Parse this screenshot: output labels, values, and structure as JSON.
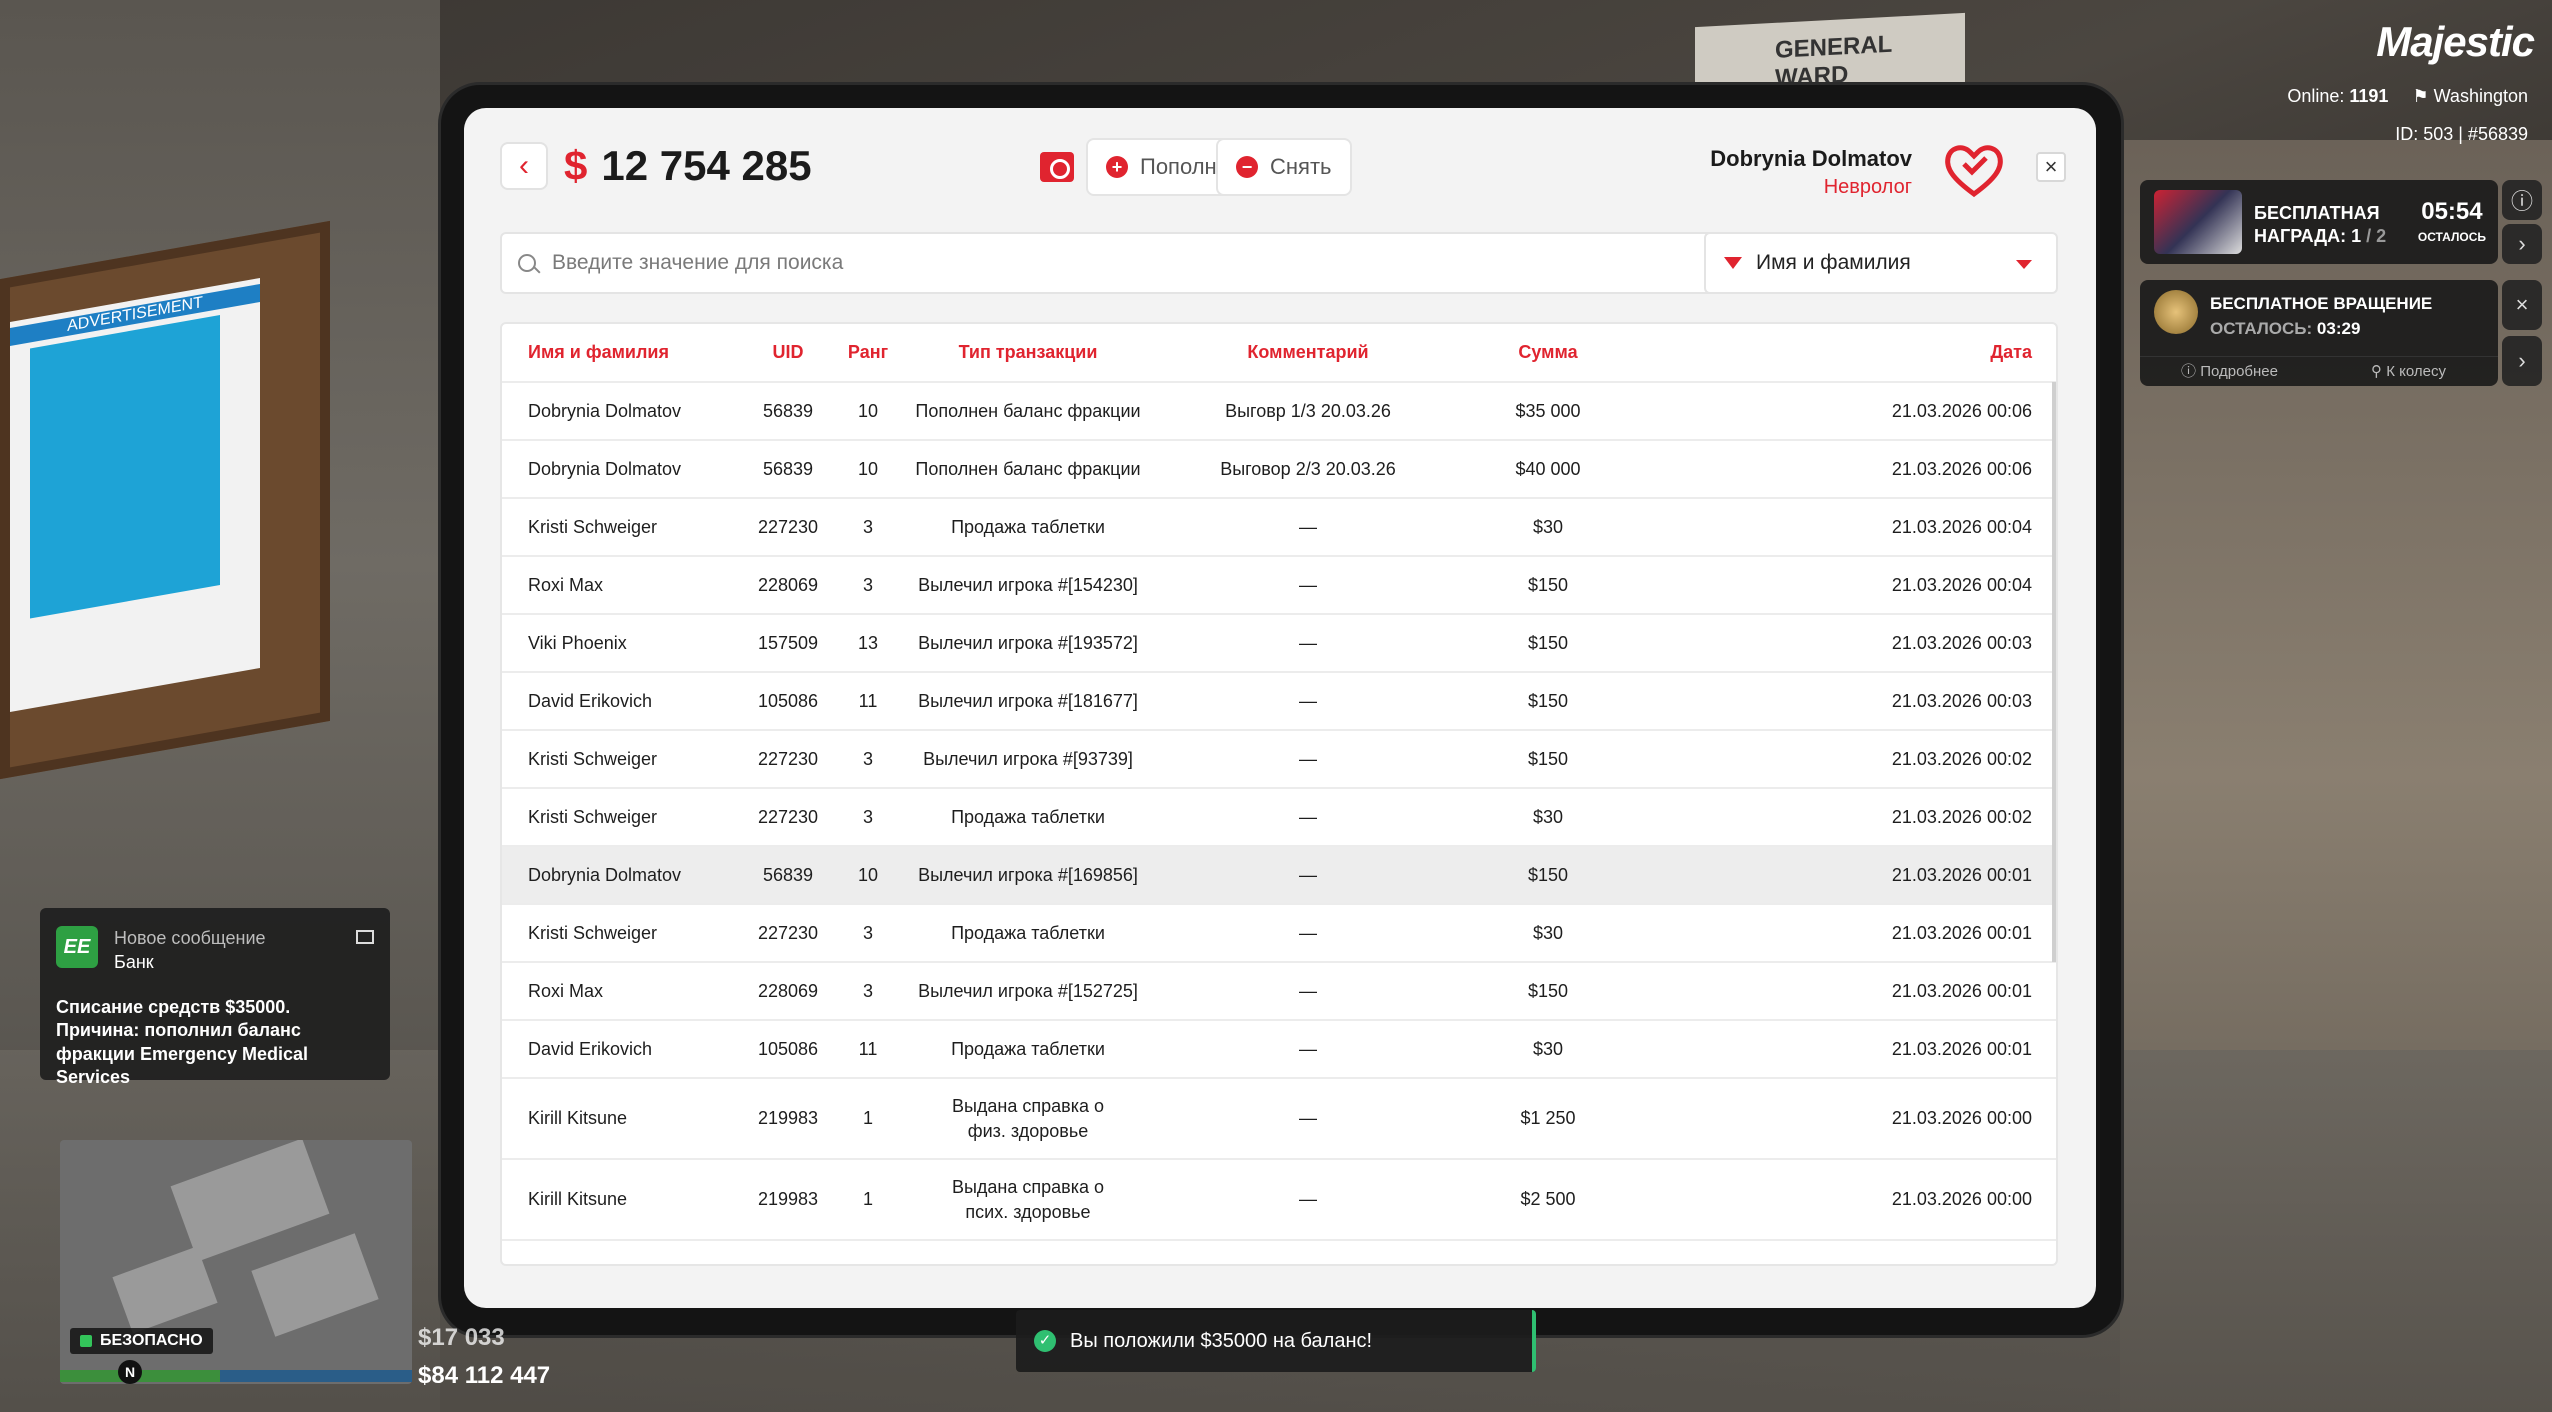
{
  "scene": {
    "poster_header": "ADVERTISEMENT",
    "sign_text": "GENERAL WARD"
  },
  "hud": {
    "logo": "Majestic",
    "online_label": "Online:",
    "online_count": "1191",
    "server": "Washington",
    "id_line": "ID: 503 | #56839",
    "reward": {
      "title_line1": "БЕСПЛАТНАЯ",
      "title_line2": "НАГРАДА: 1",
      "title_total": " / 2",
      "time": "05:54",
      "time_label": "ОСТАЛОСЬ"
    },
    "spin": {
      "title": "БЕСПЛАТНОЕ ВРАЩЕНИЕ",
      "left_label": "ОСТАЛОСЬ:",
      "left_time": "03:29",
      "more": "Подробнее",
      "to_wheel": "К колесу"
    },
    "notification": {
      "app": "EE",
      "title": "Новое сообщение",
      "sender": "Банк",
      "body": "Списание средств $35000. Причина: пополнил баланс фракции Emergency Medical Services"
    },
    "safe_zone": "БЕЗОПАСНО",
    "compass": "N",
    "cash": "$17 033",
    "bank": "$84 112 447",
    "toast": "Вы положили $35000 на баланс!"
  },
  "header": {
    "back_icon": "‹",
    "currency": "$",
    "balance": "12 754 285",
    "deposit_label": "Пополнить",
    "withdraw_label": "Снять",
    "user_name": "Dobrynia Dolmatov",
    "user_rank": "Невролог",
    "close_icon": "×"
  },
  "search": {
    "placeholder": "Введите значение для поиска",
    "filter_label": "Имя и фамилия"
  },
  "table": {
    "columns": [
      "Имя и фамилия",
      "UID",
      "Ранг",
      "Тип транзакции",
      "Комментарий",
      "Сумма",
      "Дата"
    ],
    "rows": [
      {
        "name": "Dobrynia Dolmatov",
        "uid": "56839",
        "rank": "10",
        "type": "Пополнен баланс фракции",
        "comment": "Выговр 1/3 20.03.26",
        "amount": "$35 000",
        "date": "21.03.2026 00:06"
      },
      {
        "name": "Dobrynia Dolmatov",
        "uid": "56839",
        "rank": "10",
        "type": "Пополнен баланс фракции",
        "comment": "Выговор 2/3 20.03.26",
        "amount": "$40 000",
        "date": "21.03.2026 00:06"
      },
      {
        "name": "Kristi Schweiger",
        "uid": "227230",
        "rank": "3",
        "type": "Продажа таблетки",
        "comment": "—",
        "amount": "$30",
        "date": "21.03.2026 00:04"
      },
      {
        "name": "Roxi Max",
        "uid": "228069",
        "rank": "3",
        "type": "Вылечил игрока #[154230]",
        "comment": "—",
        "amount": "$150",
        "date": "21.03.2026 00:04"
      },
      {
        "name": "Viki Phoenix",
        "uid": "157509",
        "rank": "13",
        "type": "Вылечил игрока #[193572]",
        "comment": "—",
        "amount": "$150",
        "date": "21.03.2026 00:03"
      },
      {
        "name": "David Erikovich",
        "uid": "105086",
        "rank": "11",
        "type": "Вылечил игрока #[181677]",
        "comment": "—",
        "amount": "$150",
        "date": "21.03.2026 00:03"
      },
      {
        "name": "Kristi Schweiger",
        "uid": "227230",
        "rank": "3",
        "type": "Вылечил игрока #[93739]",
        "comment": "—",
        "amount": "$150",
        "date": "21.03.2026 00:02"
      },
      {
        "name": "Kristi Schweiger",
        "uid": "227230",
        "rank": "3",
        "type": "Продажа таблетки",
        "comment": "—",
        "amount": "$30",
        "date": "21.03.2026 00:02"
      },
      {
        "name": "Dobrynia Dolmatov",
        "uid": "56839",
        "rank": "10",
        "type": "Вылечил игрока #[169856]",
        "comment": "—",
        "amount": "$150",
        "date": "21.03.2026 00:01"
      },
      {
        "name": "Kristi Schweiger",
        "uid": "227230",
        "rank": "3",
        "type": "Продажа таблетки",
        "comment": "—",
        "amount": "$30",
        "date": "21.03.2026 00:01"
      },
      {
        "name": "Roxi Max",
        "uid": "228069",
        "rank": "3",
        "type": "Вылечил игрока #[152725]",
        "comment": "—",
        "amount": "$150",
        "date": "21.03.2026 00:01"
      },
      {
        "name": "David Erikovich",
        "uid": "105086",
        "rank": "11",
        "type": "Продажа таблетки",
        "comment": "—",
        "amount": "$30",
        "date": "21.03.2026 00:01"
      },
      {
        "name": "Kirill Kitsune",
        "uid": "219983",
        "rank": "1",
        "type": "Выдана справка о физ. здоровье",
        "comment": "—",
        "amount": "$1 250",
        "date": "21.03.2026 00:00"
      },
      {
        "name": "Kirill Kitsune",
        "uid": "219983",
        "rank": "1",
        "type": "Выдана справка о псих. здоровье",
        "comment": "—",
        "amount": "$2 500",
        "date": "21.03.2026 00:00"
      }
    ]
  },
  "colors": {
    "accent": "#e0242f",
    "success": "#2fbf71"
  }
}
